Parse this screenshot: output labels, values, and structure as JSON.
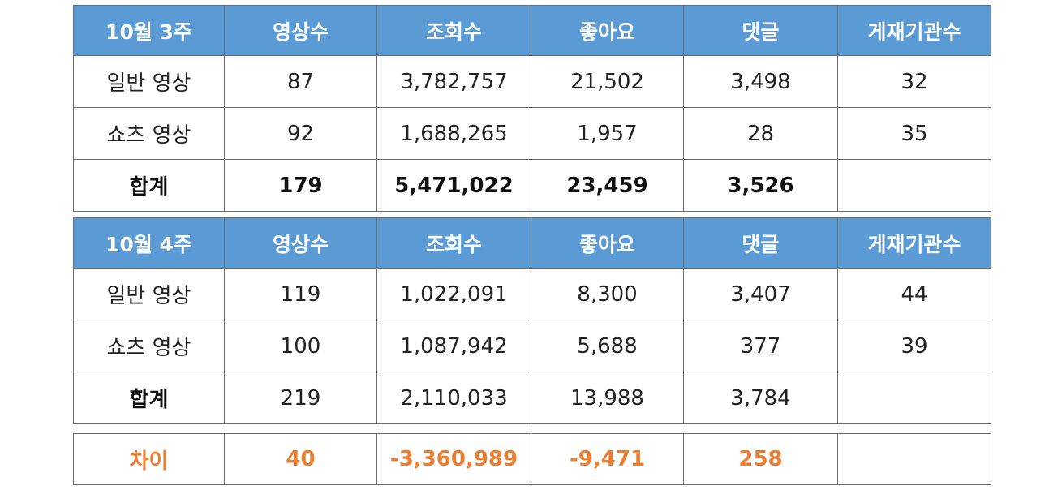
{
  "week3": {
    "header": [
      "10월 3주",
      "영상수",
      "조회수",
      "좋아요",
      "댓글",
      "게재기관수"
    ],
    "rows": [
      [
        "일반 영상",
        "87",
        "3,782,757",
        "21,502",
        "3,498",
        "32"
      ],
      [
        "쇼츠 영상",
        "92",
        "1,688,265",
        "1,957",
        "28",
        "35"
      ],
      [
        "합계",
        "179",
        "5,471,022",
        "23,459",
        "3,526",
        ""
      ]
    ]
  },
  "week4": {
    "header": [
      "10월 4주",
      "영상수",
      "조회수",
      "좋아요",
      "댓글",
      "게재기관수"
    ],
    "rows": [
      [
        "일반 영상",
        "119",
        "1,022,091",
        "8,300",
        "3,407",
        "44"
      ],
      [
        "쇼츠 영상",
        "100",
        "1,087,942",
        "5,688",
        "377",
        "39"
      ],
      [
        "합계",
        "219",
        "2,110,033",
        "13,988",
        "3,784",
        ""
      ]
    ]
  },
  "diff": {
    "row": [
      "차이",
      "40",
      "-3,360,989",
      "-9,471",
      "258",
      ""
    ]
  },
  "colors": {
    "header_bg": "#5b9bd5",
    "header_text": "#ffffff",
    "diff_text": "#ed7d31",
    "border": "#6b6b6b"
  }
}
